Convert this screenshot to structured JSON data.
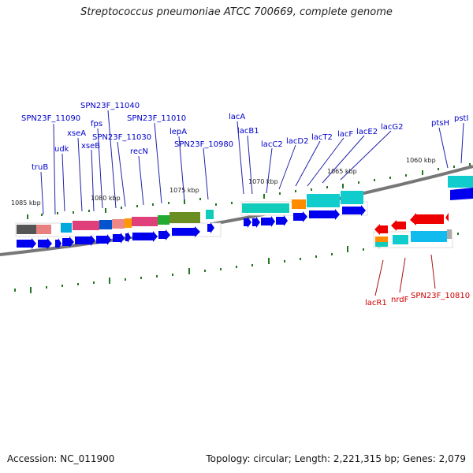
{
  "title": "Streptococcus pneumoniae ATCC 700669, complete genome",
  "footer": {
    "accession": "Accession: NC_011900",
    "summary": "Topology: circular; Length: 2,221,315 bp; Genes: 2,079"
  },
  "colors": {
    "forward_label": "#0000cc",
    "reverse_label": "#cc0000",
    "cds": "#0000ee",
    "reverse_cds": "#ee0000",
    "backbone": "#777777",
    "tick": "#227722"
  },
  "scale_labels": [
    "1085 kbp",
    "1080 kbp",
    "1075 kbp",
    "1070 kbp",
    "1065 kbp",
    "1060 kbp"
  ],
  "forward_gene_labels": [
    "truB",
    "SPN23F_11090",
    "udk",
    "xseA",
    "xseB",
    "fps",
    "SPN23F_11040",
    "SPN23F_11030",
    "recN",
    "SPN23F_11010",
    "lepA",
    "SPN23F_10980",
    "lacA",
    "lacB1",
    "lacC2",
    "lacD2",
    "lacT2",
    "lacF",
    "lacE2",
    "lacG2",
    "ptsH",
    "pstI"
  ],
  "reverse_gene_labels": [
    "lacR1",
    "nrdF",
    "SPN23F_10810"
  ]
}
